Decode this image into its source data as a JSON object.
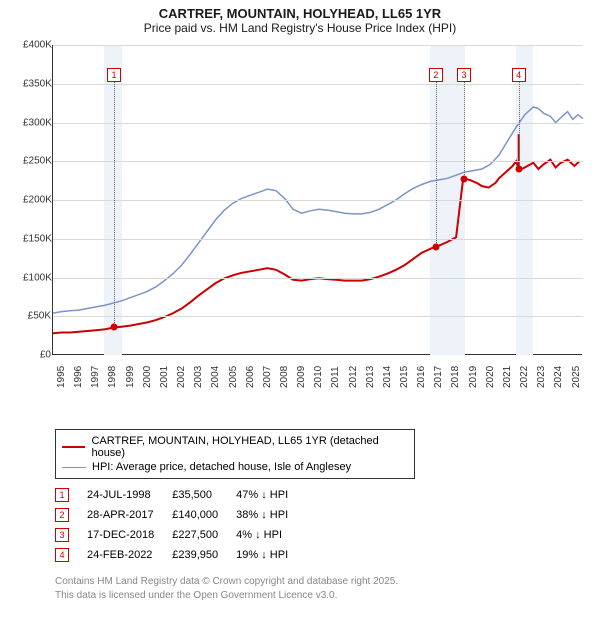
{
  "title": "CARTREF, MOUNTAIN, HOLYHEAD, LL65 1YR",
  "subtitle": "Price paid vs. HM Land Registry's House Price Index (HPI)",
  "chart": {
    "type": "line",
    "xlim": [
      1995,
      2025.9
    ],
    "ylim": [
      0,
      400000
    ],
    "ytick_step": 50000,
    "ylabels": [
      "£0",
      "£50K",
      "£100K",
      "£150K",
      "£200K",
      "£250K",
      "£300K",
      "£350K",
      "£400K"
    ],
    "xticks": [
      1995,
      1996,
      1997,
      1998,
      1999,
      2000,
      2001,
      2002,
      2003,
      2004,
      2005,
      2006,
      2007,
      2008,
      2009,
      2010,
      2011,
      2012,
      2013,
      2014,
      2015,
      2016,
      2017,
      2018,
      2019,
      2020,
      2021,
      2022,
      2023,
      2024,
      2025
    ],
    "bands": [
      [
        1998,
        1999
      ],
      [
        2017,
        2018
      ],
      [
        2018,
        2019
      ],
      [
        2022,
        2023
      ]
    ],
    "background_color": "#ffffff",
    "grid_color": "#d9d9d9",
    "band_color": "#eef3f9",
    "series": [
      {
        "name": "CARTREF, MOUNTAIN, HOLYHEAD, LL65 1YR (detached house)",
        "color": "#cc0000",
        "width": 2,
        "data": [
          [
            1995,
            28000
          ],
          [
            1995.5,
            29000
          ],
          [
            1996,
            29000
          ],
          [
            1996.5,
            30000
          ],
          [
            1997,
            31000
          ],
          [
            1997.5,
            32000
          ],
          [
            1998,
            33000
          ],
          [
            1998.56,
            35500
          ],
          [
            1999,
            36500
          ],
          [
            1999.5,
            38000
          ],
          [
            2000,
            40000
          ],
          [
            2000.5,
            42000
          ],
          [
            2001,
            45000
          ],
          [
            2001.5,
            49000
          ],
          [
            2002,
            54000
          ],
          [
            2002.5,
            60000
          ],
          [
            2003,
            68000
          ],
          [
            2003.5,
            77000
          ],
          [
            2004,
            85000
          ],
          [
            2004.5,
            93000
          ],
          [
            2005,
            99000
          ],
          [
            2005.5,
            103000
          ],
          [
            2006,
            106000
          ],
          [
            2006.5,
            108000
          ],
          [
            2007,
            110000
          ],
          [
            2007.5,
            112000
          ],
          [
            2008,
            110000
          ],
          [
            2008.5,
            104000
          ],
          [
            2009,
            97000
          ],
          [
            2009.5,
            96000
          ],
          [
            2010,
            98000
          ],
          [
            2010.5,
            99000
          ],
          [
            2011,
            98000
          ],
          [
            2011.5,
            97000
          ],
          [
            2012,
            96000
          ],
          [
            2012.5,
            96000
          ],
          [
            2013,
            96000
          ],
          [
            2013.5,
            98000
          ],
          [
            2014,
            101000
          ],
          [
            2014.5,
            105000
          ],
          [
            2015,
            110000
          ],
          [
            2015.5,
            116000
          ],
          [
            2016,
            124000
          ],
          [
            2016.5,
            132000
          ],
          [
            2017,
            137000
          ],
          [
            2017.32,
            140000
          ],
          [
            2017.6,
            142000
          ],
          [
            2018,
            146000
          ],
          [
            2018.5,
            152000
          ],
          [
            2018.9,
            225000
          ],
          [
            2018.96,
            227500
          ],
          [
            2019.3,
            226000
          ],
          [
            2019.7,
            222000
          ],
          [
            2020,
            218000
          ],
          [
            2020.4,
            216000
          ],
          [
            2020.8,
            222000
          ],
          [
            2021,
            228000
          ],
          [
            2021.4,
            236000
          ],
          [
            2021.8,
            244000
          ],
          [
            2022,
            250000
          ],
          [
            2022.15,
            239950
          ],
          [
            2022.152,
            285000
          ],
          [
            2022.154,
            238000
          ],
          [
            2022.5,
            242000
          ],
          [
            2023,
            248000
          ],
          [
            2023.3,
            240000
          ],
          [
            2023.6,
            246000
          ],
          [
            2024,
            252000
          ],
          [
            2024.3,
            242000
          ],
          [
            2024.6,
            248000
          ],
          [
            2025,
            252000
          ],
          [
            2025.4,
            244000
          ],
          [
            2025.7,
            250000
          ]
        ]
      },
      {
        "name": "HPI: Average price, detached house, Isle of Anglesey",
        "color": "#7b94c9",
        "width": 1.5,
        "data": [
          [
            1995,
            54000
          ],
          [
            1995.5,
            56000
          ],
          [
            1996,
            57000
          ],
          [
            1996.5,
            58000
          ],
          [
            1997,
            60000
          ],
          [
            1997.5,
            62000
          ],
          [
            1998,
            64000
          ],
          [
            1998.5,
            67000
          ],
          [
            1999,
            70000
          ],
          [
            1999.5,
            74000
          ],
          [
            2000,
            78000
          ],
          [
            2000.5,
            82000
          ],
          [
            2001,
            88000
          ],
          [
            2001.5,
            96000
          ],
          [
            2002,
            105000
          ],
          [
            2002.5,
            116000
          ],
          [
            2003,
            130000
          ],
          [
            2003.5,
            145000
          ],
          [
            2004,
            160000
          ],
          [
            2004.5,
            175000
          ],
          [
            2005,
            187000
          ],
          [
            2005.5,
            196000
          ],
          [
            2006,
            202000
          ],
          [
            2006.5,
            206000
          ],
          [
            2007,
            210000
          ],
          [
            2007.5,
            214000
          ],
          [
            2008,
            212000
          ],
          [
            2008.5,
            202000
          ],
          [
            2009,
            188000
          ],
          [
            2009.5,
            183000
          ],
          [
            2010,
            186000
          ],
          [
            2010.5,
            188000
          ],
          [
            2011,
            187000
          ],
          [
            2011.5,
            185000
          ],
          [
            2012,
            183000
          ],
          [
            2012.5,
            182000
          ],
          [
            2013,
            182000
          ],
          [
            2013.5,
            184000
          ],
          [
            2014,
            188000
          ],
          [
            2014.5,
            194000
          ],
          [
            2015,
            200000
          ],
          [
            2015.5,
            208000
          ],
          [
            2016,
            215000
          ],
          [
            2016.5,
            220000
          ],
          [
            2017,
            224000
          ],
          [
            2017.5,
            226000
          ],
          [
            2018,
            228000
          ],
          [
            2018.5,
            232000
          ],
          [
            2019,
            236000
          ],
          [
            2019.5,
            238000
          ],
          [
            2020,
            240000
          ],
          [
            2020.5,
            246000
          ],
          [
            2021,
            258000
          ],
          [
            2021.5,
            276000
          ],
          [
            2022,
            294000
          ],
          [
            2022.5,
            310000
          ],
          [
            2023,
            320000
          ],
          [
            2023.3,
            318000
          ],
          [
            2023.6,
            312000
          ],
          [
            2024,
            308000
          ],
          [
            2024.3,
            300000
          ],
          [
            2024.6,
            306000
          ],
          [
            2025,
            314000
          ],
          [
            2025.3,
            304000
          ],
          [
            2025.6,
            310000
          ],
          [
            2025.9,
            305000
          ]
        ]
      }
    ],
    "markers": [
      {
        "n": "1",
        "x": 1998.56,
        "y": 35500,
        "label_y": 370000
      },
      {
        "n": "2",
        "x": 2017.32,
        "y": 140000,
        "label_y": 370000
      },
      {
        "n": "3",
        "x": 2018.96,
        "y": 227500,
        "label_y": 370000
      },
      {
        "n": "4",
        "x": 2022.15,
        "y": 239950,
        "label_y": 370000
      }
    ]
  },
  "legend": [
    {
      "label": "CARTREF, MOUNTAIN, HOLYHEAD, LL65 1YR (detached house)",
      "color": "#cc0000",
      "width": 2
    },
    {
      "label": "HPI: Average price, detached house, Isle of Anglesey",
      "color": "#7b94c9",
      "width": 1.5
    }
  ],
  "sales": [
    {
      "n": "1",
      "date": "24-JUL-1998",
      "price": "£35,500",
      "pct": "47% ↓ HPI"
    },
    {
      "n": "2",
      "date": "28-APR-2017",
      "price": "£140,000",
      "pct": "38% ↓ HPI"
    },
    {
      "n": "3",
      "date": "17-DEC-2018",
      "price": "£227,500",
      "pct": "4% ↓ HPI"
    },
    {
      "n": "4",
      "date": "24-FEB-2022",
      "price": "£239,950",
      "pct": "19% ↓ HPI"
    }
  ],
  "footer1": "Contains HM Land Registry data © Crown copyright and database right 2025.",
  "footer2": "This data is licensed under the Open Government Licence v3.0."
}
